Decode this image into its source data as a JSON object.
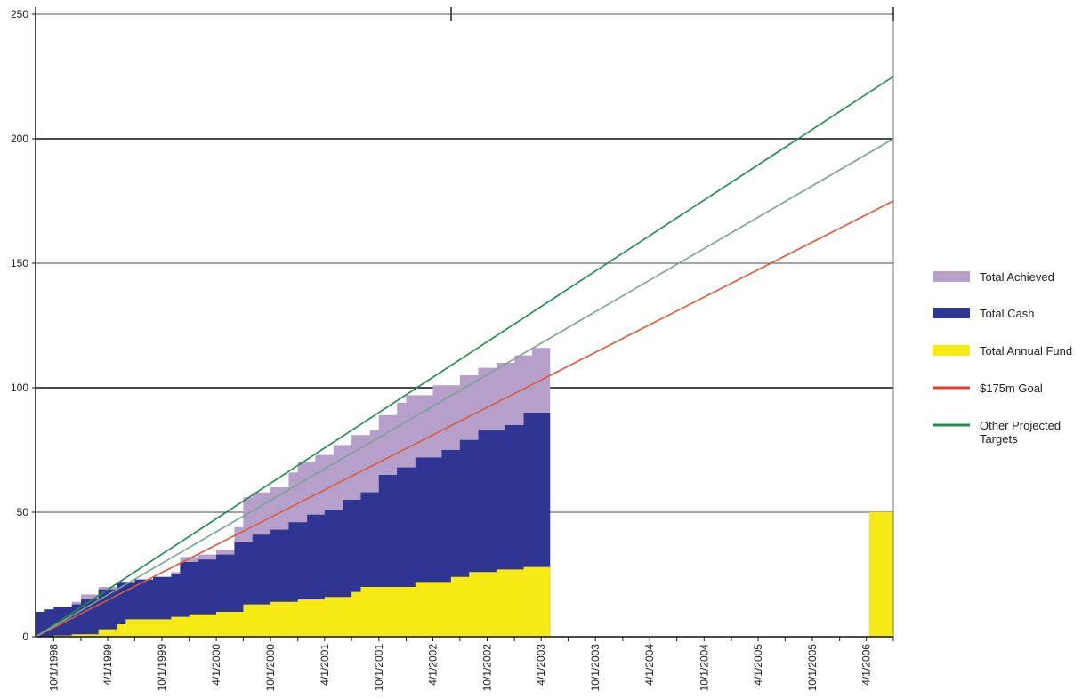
{
  "chart_data": {
    "type": "area",
    "x_axis": {
      "type": "date",
      "min": "1998-08-01",
      "max": "2006-07-01",
      "tick_labels": [
        "10/1/1998",
        "4/1/1999",
        "10/1/1999",
        "4/1/2000",
        "10/1/2000",
        "4/1/2001",
        "10/1/2001",
        "4/1/2002",
        "10/1/2002",
        "4/1/2003",
        "10/1/2003",
        "4/1/2004",
        "10/1/2004",
        "4/1/2005",
        "10/1/2005",
        "4/1/2006"
      ],
      "tick_dates": [
        "1998-10-01",
        "1999-04-01",
        "1999-10-01",
        "2000-04-01",
        "2000-10-01",
        "2001-04-01",
        "2001-10-01",
        "2002-04-01",
        "2002-10-01",
        "2003-04-01",
        "2003-10-01",
        "2004-04-01",
        "2004-10-01",
        "2005-04-01",
        "2005-10-01",
        "2006-04-01"
      ]
    },
    "y_axis": {
      "min": 0,
      "max": 250,
      "ticks": [
        0,
        50,
        100,
        150,
        200,
        250
      ],
      "tick_labels": [
        "0",
        "50",
        "100",
        "150",
        "200",
        "250"
      ]
    },
    "grid": true,
    "legend_position": "right",
    "series": [
      {
        "name": "Total Achieved",
        "kind": "area",
        "color": "#b79fcc",
        "points": [
          [
            "1998-08-01",
            10
          ],
          [
            "1998-09-01",
            11
          ],
          [
            "1998-10-01",
            12
          ],
          [
            "1998-12-01",
            14
          ],
          [
            "1999-01-01",
            17
          ],
          [
            "1999-03-01",
            20
          ],
          [
            "1999-05-01",
            22
          ],
          [
            "1999-07-01",
            23
          ],
          [
            "1999-09-01",
            24
          ],
          [
            "1999-11-01",
            26
          ],
          [
            "1999-12-01",
            32
          ],
          [
            "2000-02-01",
            33
          ],
          [
            "2000-04-01",
            35
          ],
          [
            "2000-06-01",
            44
          ],
          [
            "2000-07-01",
            56
          ],
          [
            "2000-08-01",
            58
          ],
          [
            "2000-10-01",
            60
          ],
          [
            "2000-12-01",
            66
          ],
          [
            "2001-01-01",
            70
          ],
          [
            "2001-03-01",
            73
          ],
          [
            "2001-05-01",
            77
          ],
          [
            "2001-07-01",
            81
          ],
          [
            "2001-09-01",
            83
          ],
          [
            "2001-10-01",
            89
          ],
          [
            "2001-12-01",
            94
          ],
          [
            "2002-01-01",
            97
          ],
          [
            "2002-04-01",
            101
          ],
          [
            "2002-07-01",
            105
          ],
          [
            "2002-09-01",
            108
          ],
          [
            "2002-11-01",
            110
          ],
          [
            "2003-01-01",
            113
          ],
          [
            "2003-03-01",
            116
          ],
          [
            "2003-05-01",
            118
          ]
        ]
      },
      {
        "name": "Total Cash",
        "kind": "area",
        "color": "#2f3592",
        "points": [
          [
            "1998-08-01",
            10
          ],
          [
            "1998-09-01",
            11
          ],
          [
            "1998-10-01",
            12
          ],
          [
            "1998-12-01",
            13
          ],
          [
            "1999-01-01",
            15
          ],
          [
            "1999-03-01",
            19
          ],
          [
            "1999-05-01",
            22
          ],
          [
            "1999-07-01",
            23
          ],
          [
            "1999-09-01",
            24
          ],
          [
            "1999-11-01",
            25
          ],
          [
            "1999-12-01",
            30
          ],
          [
            "2000-02-01",
            31
          ],
          [
            "2000-04-01",
            33
          ],
          [
            "2000-06-01",
            38
          ],
          [
            "2000-08-01",
            41
          ],
          [
            "2000-10-01",
            43
          ],
          [
            "2000-12-01",
            46
          ],
          [
            "2001-02-01",
            49
          ],
          [
            "2001-04-01",
            51
          ],
          [
            "2001-06-01",
            55
          ],
          [
            "2001-08-01",
            58
          ],
          [
            "2001-10-01",
            65
          ],
          [
            "2001-12-01",
            68
          ],
          [
            "2002-02-01",
            72
          ],
          [
            "2002-05-01",
            75
          ],
          [
            "2002-07-01",
            79
          ],
          [
            "2002-09-01",
            83
          ],
          [
            "2002-12-01",
            85
          ],
          [
            "2003-02-01",
            90
          ],
          [
            "2003-05-01",
            93
          ]
        ]
      },
      {
        "name": "Total Annual Fund",
        "kind": "area",
        "color": "#f5ea14",
        "points": [
          [
            "1998-08-01",
            0
          ],
          [
            "1998-10-01",
            0.5
          ],
          [
            "1998-12-01",
            1
          ],
          [
            "1999-03-01",
            3
          ],
          [
            "1999-05-01",
            5
          ],
          [
            "1999-06-01",
            7
          ],
          [
            "1999-09-01",
            7
          ],
          [
            "1999-11-01",
            8
          ],
          [
            "2000-01-01",
            9
          ],
          [
            "2000-04-01",
            10
          ],
          [
            "2000-07-01",
            13
          ],
          [
            "2000-10-01",
            14
          ],
          [
            "2001-01-01",
            15
          ],
          [
            "2001-04-01",
            16
          ],
          [
            "2001-07-01",
            18
          ],
          [
            "2001-08-01",
            20
          ],
          [
            "2001-11-01",
            20
          ],
          [
            "2002-02-01",
            22
          ],
          [
            "2002-06-01",
            24
          ],
          [
            "2002-08-01",
            26
          ],
          [
            "2002-11-01",
            27
          ],
          [
            "2003-02-01",
            28
          ],
          [
            "2003-05-01",
            29
          ]
        ]
      },
      {
        "name": "$175m Goal",
        "kind": "line",
        "color": "#d95b3c",
        "points": [
          [
            "1998-08-01",
            0
          ],
          [
            "2006-07-01",
            175
          ]
        ]
      },
      {
        "name": "Other Projected Targets",
        "kind": "line",
        "color": "#1f8a4c",
        "points": [
          [
            "1998-08-01",
            0
          ],
          [
            "2006-07-01",
            225
          ]
        ]
      },
      {
        "name": "Other Projected Targets",
        "kind": "line",
        "color": "#7aa393",
        "points": [
          [
            "1998-08-01",
            0
          ],
          [
            "2006-07-01",
            200
          ]
        ]
      }
    ],
    "annual_fund_bar": {
      "start": "2006-04-10",
      "end": "2006-07-01",
      "value": 50,
      "color": "#f5ea14"
    },
    "legend": [
      {
        "label": "Total Achieved",
        "color": "#b79fcc",
        "marker": "box"
      },
      {
        "label": "Total Cash",
        "color": "#2f3592",
        "marker": "box"
      },
      {
        "label": "Total Annual Fund",
        "color": "#f5ea14",
        "marker": "box"
      },
      {
        "label": "$175m Goal",
        "color": "#e2402e",
        "marker": "line"
      },
      {
        "label": "Other Projected Targets",
        "color": "#1f8a4c",
        "marker": "line"
      }
    ]
  }
}
